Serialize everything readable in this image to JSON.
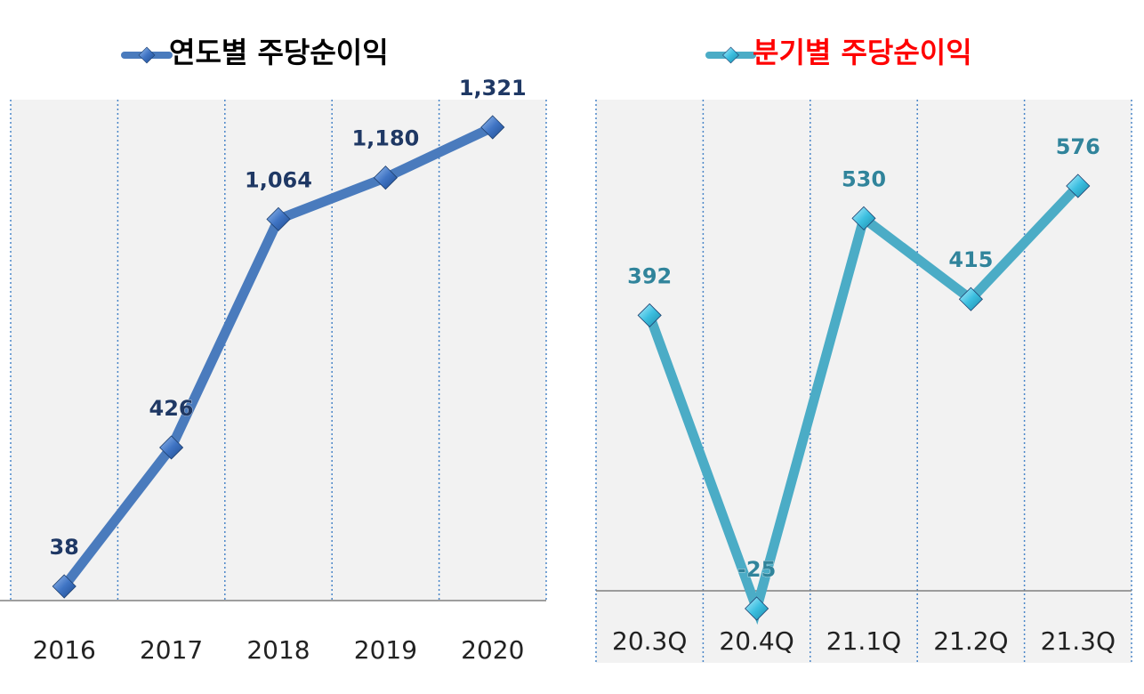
{
  "chart_data": [
    {
      "type": "line",
      "title": "연도별 주당순이익",
      "legend": "top",
      "grid": "vertical dotted",
      "categories": [
        "2016",
        "2017",
        "2018",
        "2019",
        "2020"
      ],
      "values": [
        38,
        426,
        1064,
        1180,
        1321
      ],
      "labels": [
        "38",
        "426",
        "1,064",
        "1,180",
        "1,321"
      ],
      "ylim": [
        0,
        1460
      ],
      "colors": {
        "line": "#4a7bbd",
        "marker": "#3a6cb8",
        "label": "#1f3864",
        "title": "#000000"
      }
    },
    {
      "type": "line",
      "title": "분기별 주당순이익",
      "legend": "top",
      "grid": "vertical dotted",
      "categories": [
        "20.3Q",
        "20.4Q",
        "21.1Q",
        "21.2Q",
        "21.3Q"
      ],
      "values": [
        392,
        -25,
        530,
        415,
        576
      ],
      "labels": [
        "392",
        "-25",
        "530",
        "415",
        "576"
      ],
      "ylim": [
        -30,
        735
      ],
      "colors": {
        "line": "#4bacc6",
        "marker": "#3cb8d8",
        "label": "#31849b",
        "title": "#ff0000"
      }
    }
  ]
}
